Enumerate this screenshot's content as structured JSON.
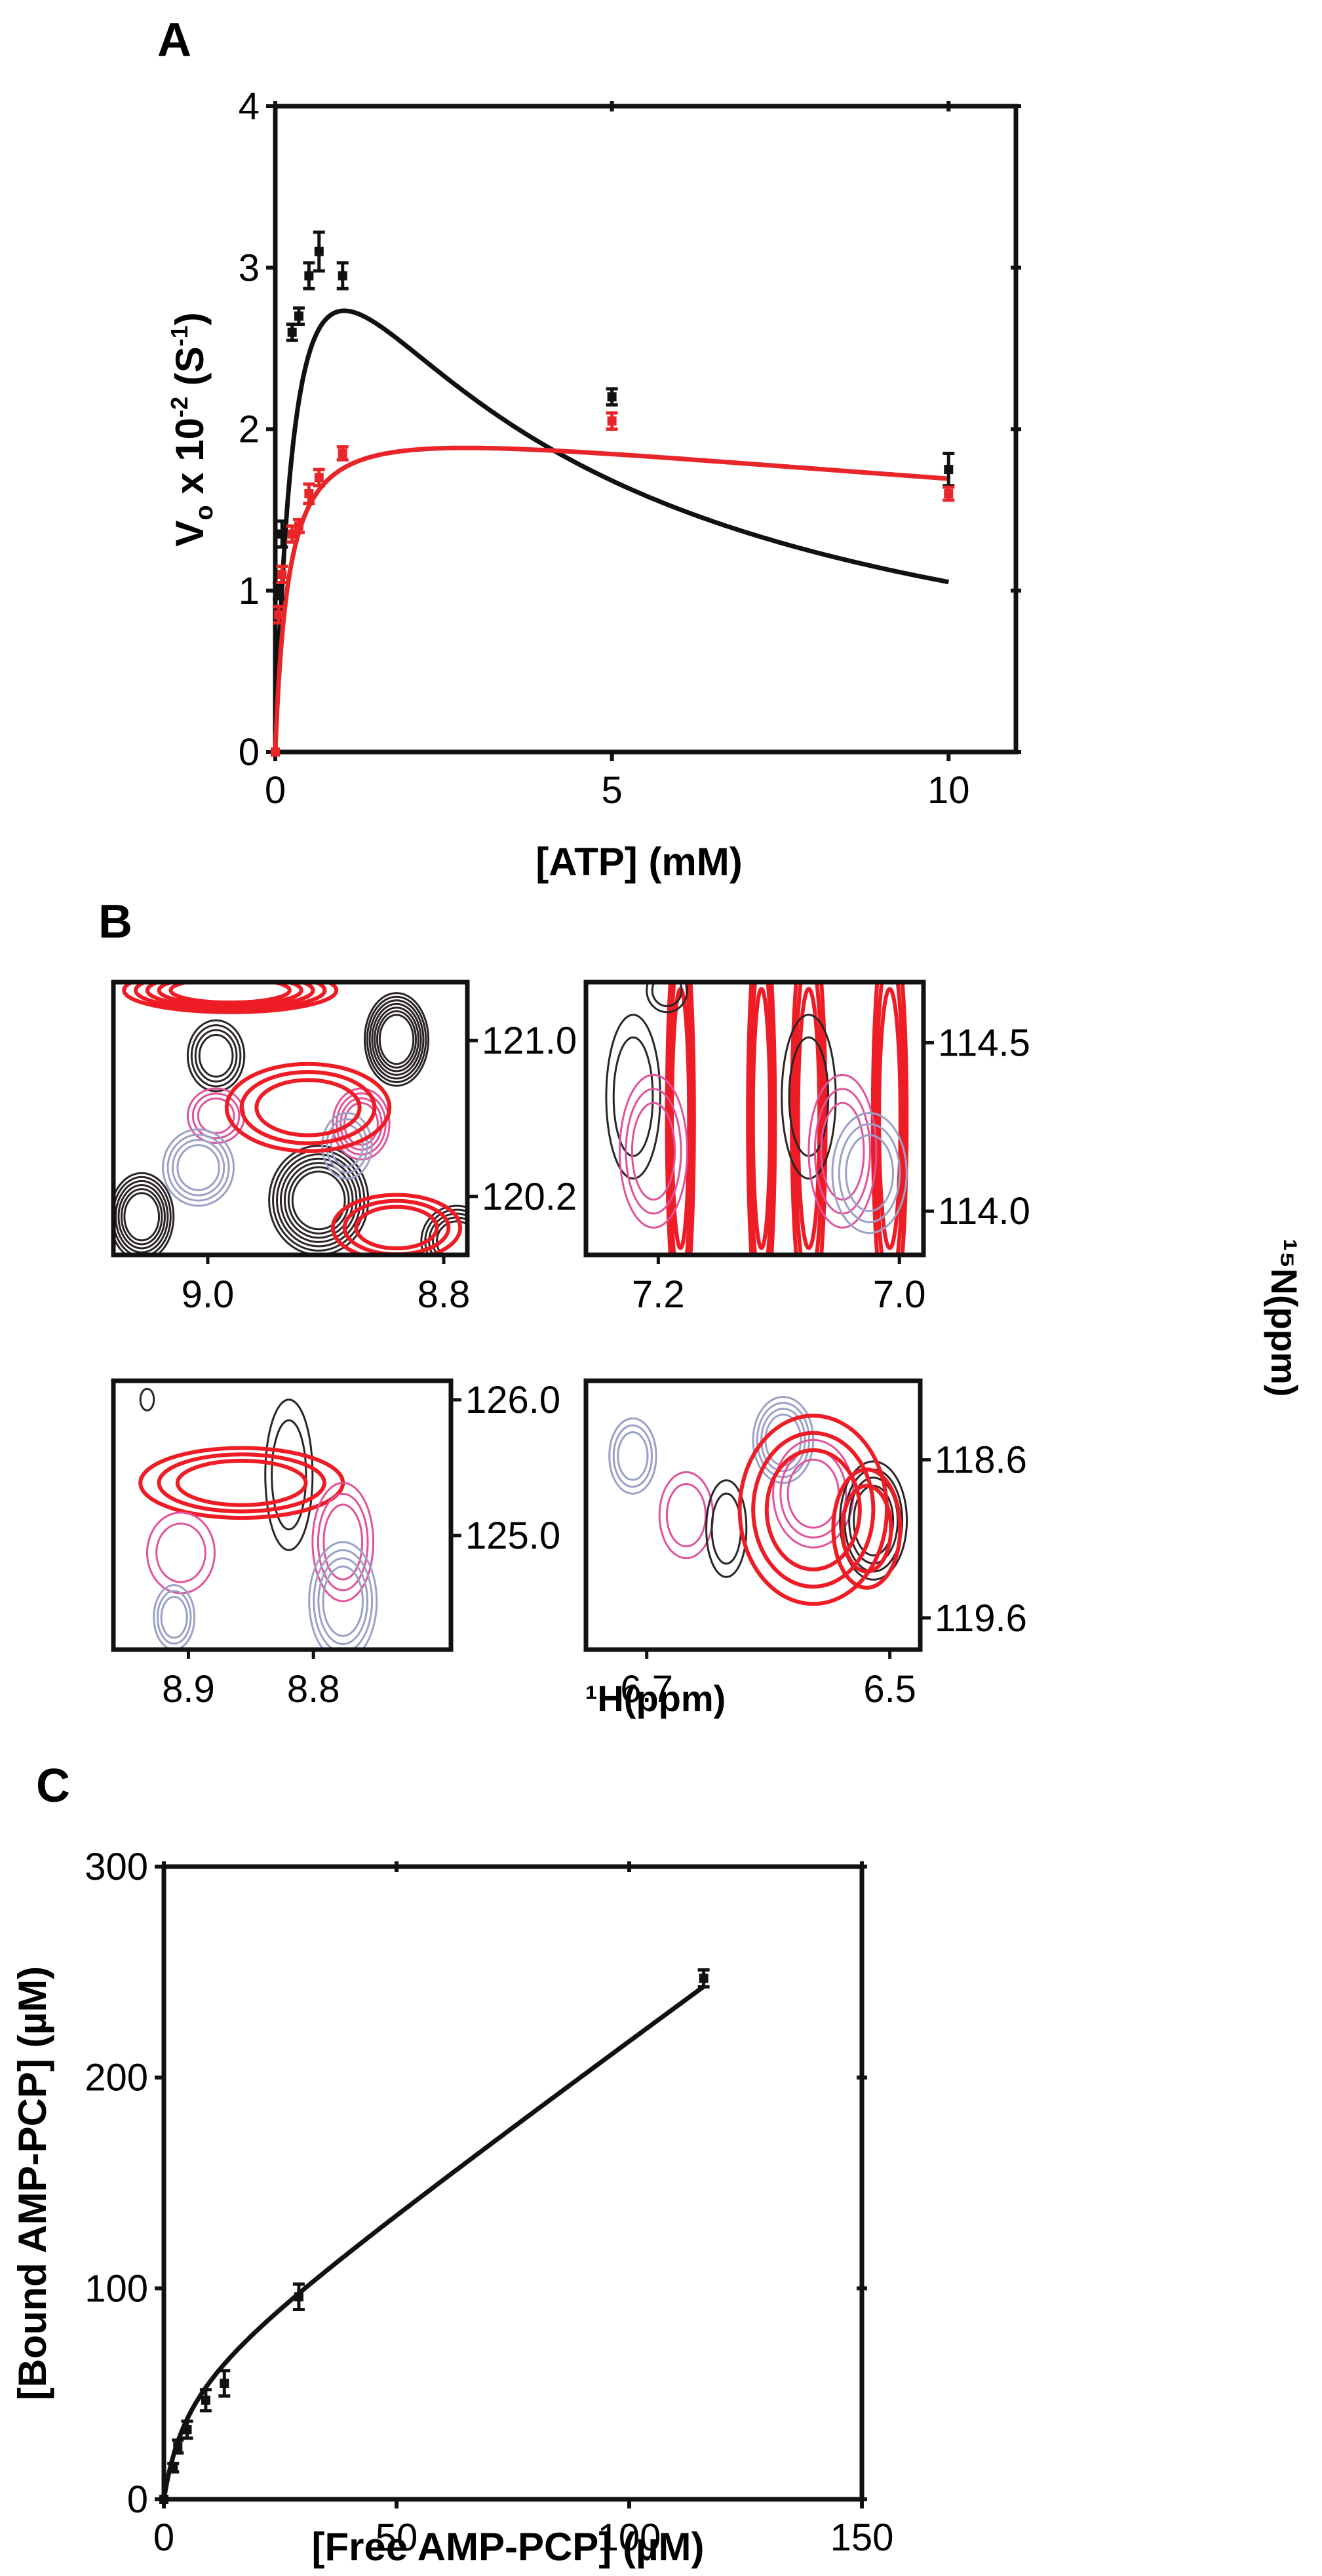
{
  "panels": {
    "a": {
      "label": "A"
    },
    "b": {
      "label": "B"
    },
    "c": {
      "label": "C"
    }
  },
  "chart_data": [
    {
      "panel": "A",
      "type": "line",
      "xlabel": "[ATP] (mM)",
      "ylabel_parts": {
        "v": "V",
        "o": "o",
        "mid": " x 10",
        "exp": "-2",
        "unit": " (S",
        "unit_exp": "-1",
        "close": ")"
      },
      "xlim": [
        0,
        11
      ],
      "ylim": [
        0,
        4
      ],
      "xticks": [
        0,
        5,
        10
      ],
      "yticks": [
        0,
        1,
        2,
        3,
        4
      ],
      "series": [
        {
          "color": "#111111",
          "points": [
            {
              "x": 0,
              "y": 0,
              "err": 0
            },
            {
              "x": 0.05,
              "y": 1.0,
              "err": 0.05
            },
            {
              "x": 0.1,
              "y": 1.35,
              "err": 0.08
            },
            {
              "x": 0.25,
              "y": 2.6,
              "err": 0.05
            },
            {
              "x": 0.35,
              "y": 2.7,
              "err": 0.05
            },
            {
              "x": 0.5,
              "y": 2.95,
              "err": 0.08
            },
            {
              "x": 0.65,
              "y": 3.1,
              "err": 0.12
            },
            {
              "x": 1.0,
              "y": 2.95,
              "err": 0.08
            },
            {
              "x": 5.0,
              "y": 2.2,
              "err": 0.05
            },
            {
              "x": 10.0,
              "y": 1.75,
              "err": 0.1
            }
          ],
          "fit": {
            "model": "substrate_inhibition",
            "vmax": 4.6,
            "km": 0.35,
            "ki": 3.0
          }
        },
        {
          "color": "#e8262a",
          "points": [
            {
              "x": 0,
              "y": 0,
              "err": 0
            },
            {
              "x": 0.05,
              "y": 0.85,
              "err": 0.05
            },
            {
              "x": 0.1,
              "y": 1.1,
              "err": 0.05
            },
            {
              "x": 0.25,
              "y": 1.35,
              "err": 0.05
            },
            {
              "x": 0.35,
              "y": 1.4,
              "err": 0.04
            },
            {
              "x": 0.5,
              "y": 1.6,
              "err": 0.06
            },
            {
              "x": 0.65,
              "y": 1.7,
              "err": 0.05
            },
            {
              "x": 1.0,
              "y": 1.85,
              "err": 0.04
            },
            {
              "x": 5.0,
              "y": 2.05,
              "err": 0.05
            },
            {
              "x": 10.0,
              "y": 1.6,
              "err": 0.04
            }
          ],
          "fit": {
            "model": "substrate_inhibition",
            "vmax": 2.15,
            "km": 0.2,
            "ki": 40.0
          }
        }
      ]
    },
    {
      "panel": "B",
      "type": "contour",
      "xlabel": "¹H(ppm)",
      "ylabel": "¹⁵N(ppm)",
      "colors": {
        "black": "#2a2426",
        "red": "#ee1c25",
        "pink": "#e0529a",
        "lavender": "#9aa0c8"
      },
      "insets": [
        {
          "name": "b1",
          "xlim": [
            9.08,
            8.78
          ],
          "ylim": [
            121.3,
            119.9
          ],
          "xticks": [
            "9.0",
            "8.8"
          ],
          "xtick_values": [
            9.0,
            8.8
          ],
          "yticks": [
            "120.2",
            "121.0"
          ],
          "ytick_values": [
            120.2,
            121.0
          ]
        },
        {
          "name": "b2",
          "xlim": [
            7.26,
            6.98
          ],
          "ylim": [
            114.68,
            113.87
          ],
          "xticks": [
            "7.2",
            "7.0"
          ],
          "xtick_values": [
            7.2,
            7.0
          ],
          "yticks": [
            "114.0",
            "114.5"
          ],
          "ytick_values": [
            114.0,
            114.5
          ]
        },
        {
          "name": "b3",
          "xlim": [
            8.96,
            8.69
          ],
          "ylim": [
            126.14,
            124.16
          ],
          "xticks": [
            "8.9",
            "8.8"
          ],
          "xtick_values": [
            8.9,
            8.8
          ],
          "yticks": [
            "125.0",
            "126.0"
          ],
          "ytick_values": [
            125.0,
            126.0
          ]
        },
        {
          "name": "b4",
          "xlim": [
            6.75,
            6.475
          ],
          "ylim": [
            118.1,
            119.8
          ],
          "xticks": [
            "6.7",
            "6.5"
          ],
          "xtick_values": [
            6.7,
            6.5
          ],
          "yticks": [
            "119.6",
            "118.6"
          ],
          "ytick_values": [
            119.6,
            118.6
          ]
        }
      ]
    },
    {
      "panel": "C",
      "type": "line",
      "xlabel": "[Free AMP-PCP] (µM)",
      "ylabel": "[Bound AMP-PCP] (µM)",
      "xlim": [
        0,
        150
      ],
      "ylim": [
        0,
        300
      ],
      "xticks": [
        0,
        50,
        100,
        150
      ],
      "yticks": [
        0,
        100,
        200,
        300
      ],
      "series": [
        {
          "color": "#111111",
          "points": [
            {
              "x": 0,
              "y": 0,
              "err": 0
            },
            {
              "x": 2,
              "y": 15,
              "err": 2
            },
            {
              "x": 3,
              "y": 25,
              "err": 3
            },
            {
              "x": 5,
              "y": 33,
              "err": 4
            },
            {
              "x": 9,
              "y": 47,
              "err": 5
            },
            {
              "x": 13,
              "y": 55,
              "err": 6
            },
            {
              "x": 29,
              "y": 96,
              "err": 6
            },
            {
              "x": 116,
              "y": 247,
              "err": 4
            }
          ],
          "fit": {
            "model": "two_site",
            "bmax1": 60,
            "kd1": 5,
            "slope": 1.6
          }
        }
      ]
    }
  ]
}
